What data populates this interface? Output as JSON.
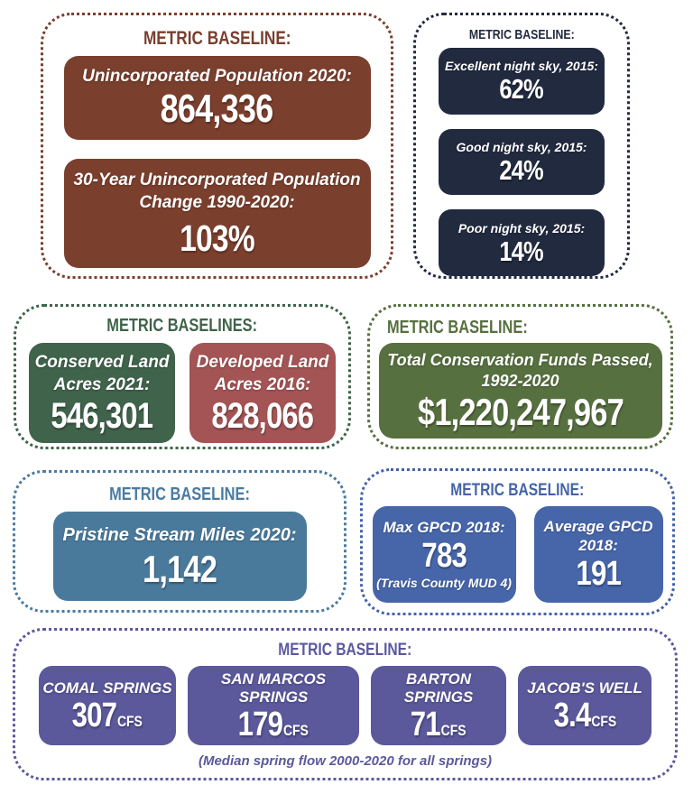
{
  "population": {
    "header": "METRIC BASELINE:",
    "cards": [
      {
        "label": "Unincorporated Population 2020:",
        "value": "864,336"
      },
      {
        "label": "30-Year Unincorporated Population Change 1990-2020:",
        "value": "103%"
      }
    ]
  },
  "night_sky": {
    "header": "METRIC BASELINE:",
    "cards": [
      {
        "label": "Excellent night sky, 2015:",
        "value": "62%"
      },
      {
        "label": "Good night sky, 2015:",
        "value": "24%"
      },
      {
        "label": "Poor night sky, 2015:",
        "value": "14%"
      }
    ]
  },
  "land": {
    "header": "METRIC BASELINES:",
    "cards": [
      {
        "label": "Conserved Land Acres 2021:",
        "value": "546,301"
      },
      {
        "label": "Developed Land Acres 2016:",
        "value": "828,066"
      }
    ]
  },
  "funds": {
    "header": "METRIC BASELINE:",
    "card": {
      "label": "Total Conservation Funds Passed, 1992-2020",
      "value": "$1,220,247,967"
    }
  },
  "streams": {
    "header": "METRIC BASELINE:",
    "card": {
      "label": "Pristine Stream Miles 2020:",
      "value": "1,142"
    }
  },
  "gpcd": {
    "header": "METRIC BASELINE:",
    "cards": [
      {
        "label": "Max GPCD 2018:",
        "value": "783",
        "note": "(Travis County MUD 4)"
      },
      {
        "label": "Average GPCD 2018:",
        "value": "191"
      }
    ]
  },
  "springs": {
    "header": "METRIC BASELINE:",
    "cards": [
      {
        "label": "COMAL SPRINGS",
        "value": "307",
        "unit": "CFS"
      },
      {
        "label": "SAN MARCOS SPRINGS",
        "value": "179",
        "unit": "CFS"
      },
      {
        "label": "BARTON SPRINGS",
        "value": "71",
        "unit": "CFS"
      },
      {
        "label": "JACOB'S WELL",
        "value": "3.4",
        "unit": "CFS"
      }
    ],
    "caption": "(Median spring flow 2000-2020 for all springs)"
  },
  "colors": {
    "population": "#7a3f2d",
    "night_sky": "#222a40",
    "land_green": "#40634c",
    "land_red": "#a45454",
    "funds": "#57703f",
    "streams": "#4a7a9b",
    "gpcd": "#4766a9",
    "springs": "#5b589b"
  },
  "chart_data": {
    "type": "table",
    "title": "Metric Baselines",
    "metrics": [
      {
        "metric": "Unincorporated Population 2020",
        "value": 864336
      },
      {
        "metric": "30-Year Unincorporated Population Change 1990-2020",
        "value": "103%"
      },
      {
        "metric": "Excellent night sky, 2015",
        "value": "62%"
      },
      {
        "metric": "Good night sky, 2015",
        "value": "24%"
      },
      {
        "metric": "Poor night sky, 2015",
        "value": "14%"
      },
      {
        "metric": "Conserved Land Acres 2021",
        "value": 546301
      },
      {
        "metric": "Developed Land Acres 2016",
        "value": 828066
      },
      {
        "metric": "Total Conservation Funds Passed, 1992-2020",
        "value": "$1,220,247,967"
      },
      {
        "metric": "Pristine Stream Miles 2020",
        "value": 1142
      },
      {
        "metric": "Max GPCD 2018 (Travis County MUD 4)",
        "value": 783
      },
      {
        "metric": "Average GPCD 2018",
        "value": 191
      },
      {
        "metric": "Comal Springs median spring flow 2000-2020 (CFS)",
        "value": 307
      },
      {
        "metric": "San Marcos Springs median spring flow 2000-2020 (CFS)",
        "value": 179
      },
      {
        "metric": "Barton Springs median spring flow 2000-2020 (CFS)",
        "value": 71
      },
      {
        "metric": "Jacob's Well median spring flow 2000-2020 (CFS)",
        "value": 3.4
      }
    ]
  }
}
